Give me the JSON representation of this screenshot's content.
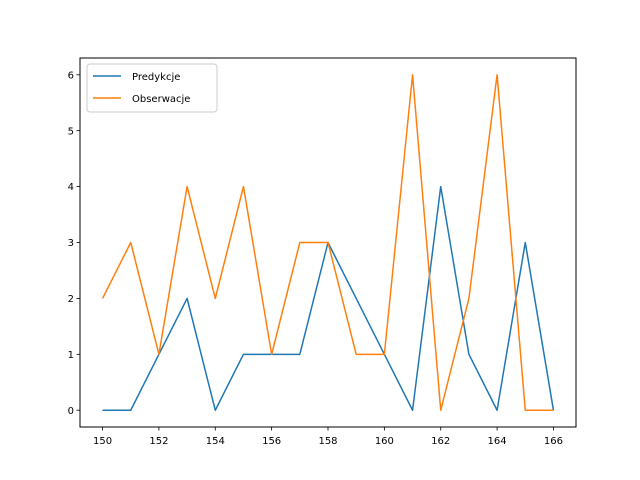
{
  "chart_data": {
    "type": "line",
    "title": "",
    "xlabel": "",
    "ylabel": "",
    "x": [
      150,
      151,
      152,
      153,
      154,
      155,
      156,
      157,
      158,
      159,
      160,
      161,
      162,
      163,
      164,
      165,
      166
    ],
    "series": [
      {
        "name": "Predykcje",
        "color": "#1f77b4",
        "values": [
          0,
          0,
          1,
          2,
          0,
          1,
          1,
          1,
          3,
          2,
          1,
          0,
          4,
          1,
          0,
          3,
          0
        ]
      },
      {
        "name": "Obserwacje",
        "color": "#ff7f0e",
        "values": [
          2,
          3,
          1,
          4,
          2,
          4,
          1,
          3,
          3,
          1,
          1,
          6,
          0,
          2,
          6,
          0,
          0
        ]
      }
    ],
    "xlim": [
      149.2,
      166.8
    ],
    "ylim": [
      -0.3,
      6.3
    ],
    "xticks": [
      150,
      152,
      154,
      156,
      158,
      160,
      162,
      164,
      166
    ],
    "yticks": [
      0,
      1,
      2,
      3,
      4,
      5,
      6
    ],
    "grid": false,
    "legend_position": "top-left"
  }
}
